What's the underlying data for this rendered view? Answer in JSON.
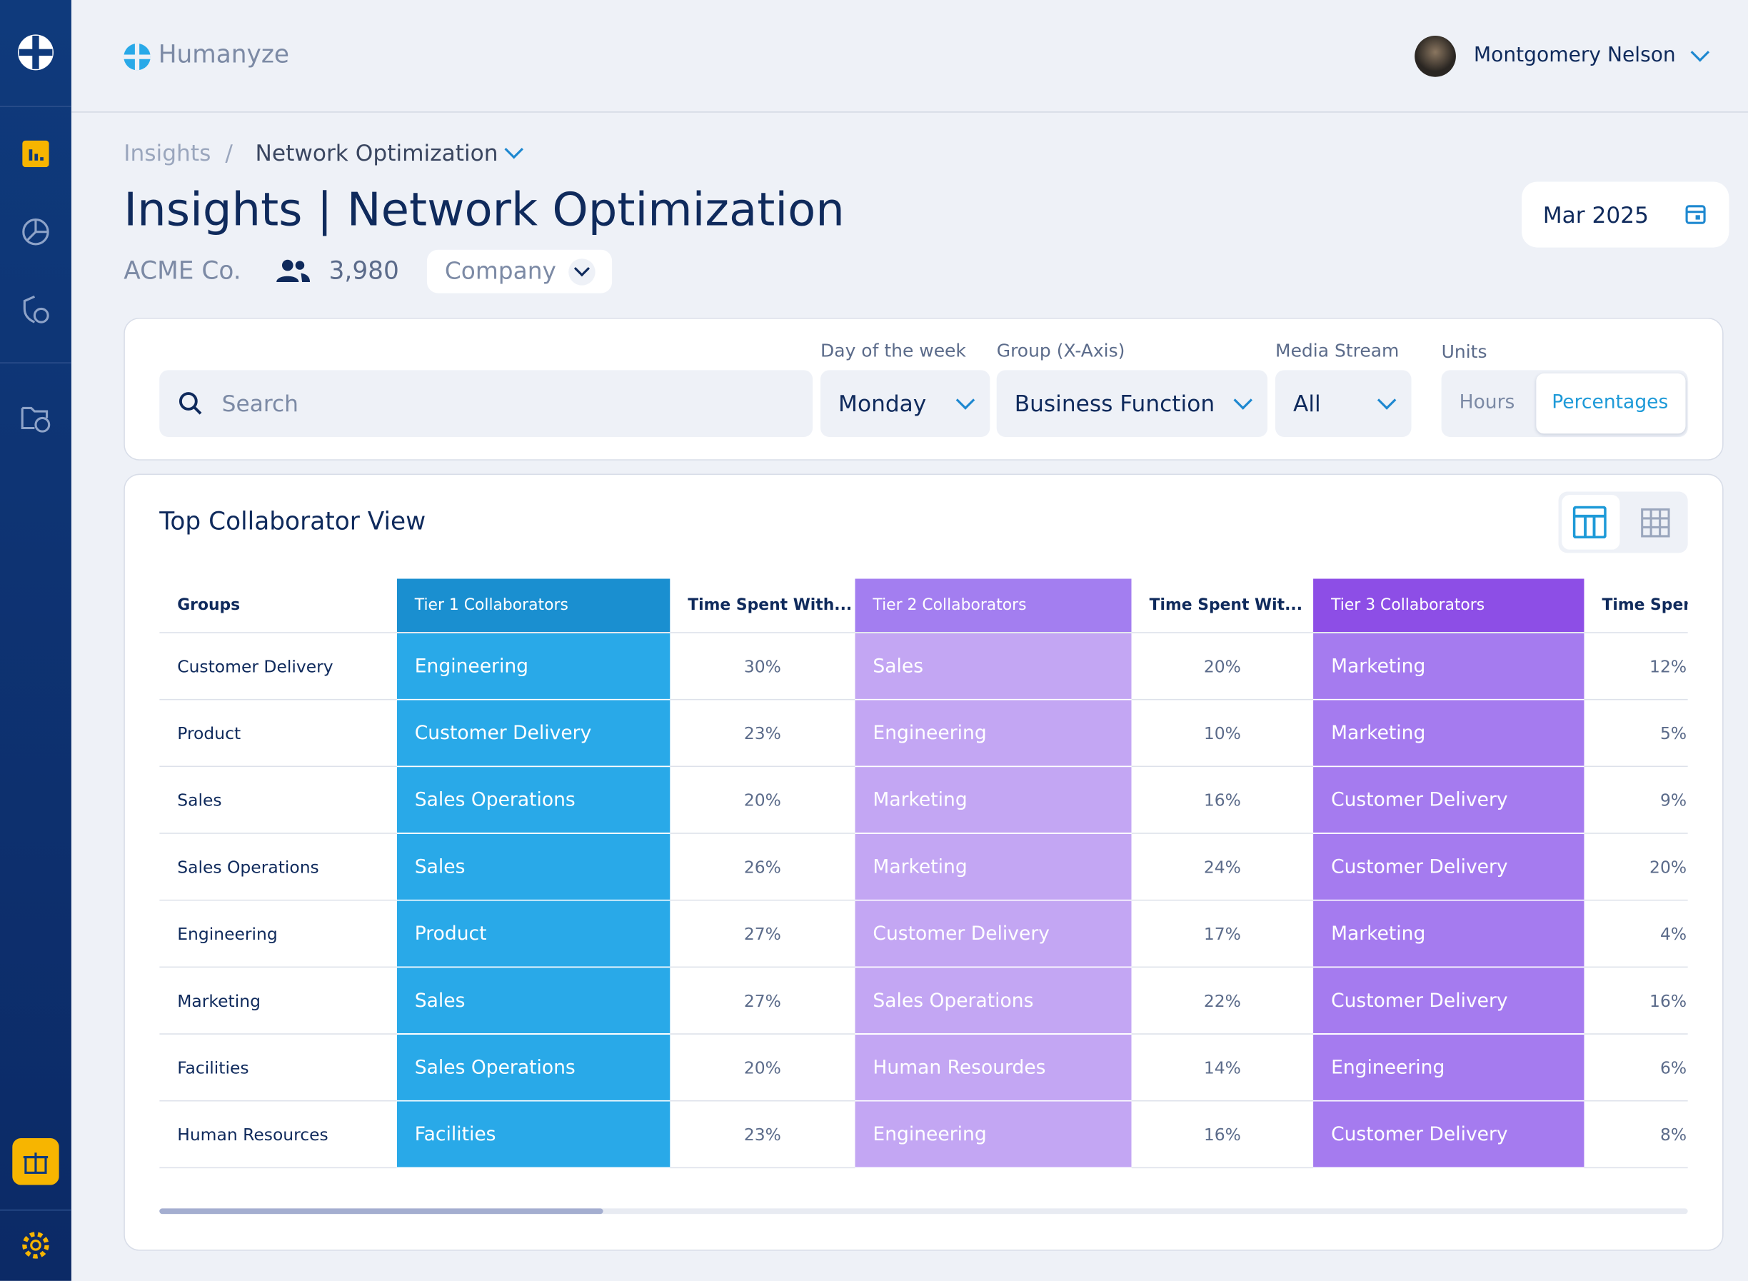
{
  "header": {
    "brand": "Humanyze",
    "user": "Montgomery Nelson"
  },
  "breadcrumb": [
    "Insights",
    "Network Optimization"
  ],
  "title": "Insights | Network Optimization",
  "org": {
    "name": "ACME Co.",
    "count": "3,980",
    "scope": "Company"
  },
  "date": "Mar 2025",
  "filters": {
    "search": "Search",
    "day": {
      "label": "Day of the week",
      "value": "Monday"
    },
    "group": {
      "label": "Group (X-Axis)",
      "value": "Business Function"
    },
    "media": {
      "label": "Media Stream",
      "value": "All"
    },
    "units": {
      "label": "Units",
      "options": [
        "Hours",
        "Percentages"
      ]
    }
  },
  "table": {
    "title": "Top Collaborator View",
    "columns": [
      "Groups",
      "Tier 1 Collaborators",
      "Time Spent With...",
      "Tier 2 Collaborators",
      "Time Spent Wit...",
      "Tier 3 Collaborators",
      "Time Spen"
    ],
    "rows": [
      [
        "Customer Delivery",
        "Engineering",
        "30%",
        "Sales",
        "20%",
        "Marketing",
        "12%"
      ],
      [
        "Product",
        "Customer Delivery",
        "23%",
        "Engineering",
        "10%",
        "Marketing",
        "5%"
      ],
      [
        "Sales",
        "Sales Operations",
        "20%",
        "Marketing",
        "16%",
        "Customer Delivery",
        "9%"
      ],
      [
        "Sales Operations",
        "Sales",
        "26%",
        "Marketing",
        "24%",
        "Customer Delivery",
        "20%"
      ],
      [
        "Engineering",
        "Product",
        "27%",
        "Customer Delivery",
        "17%",
        "Marketing",
        "4%"
      ],
      [
        "Marketing",
        "Sales",
        "27%",
        "Sales Operations",
        "22%",
        "Customer Delivery",
        "16%"
      ],
      [
        "Facilities",
        "Sales Operations",
        "20%",
        "Human Resourdes",
        "14%",
        "Engineering",
        "6%"
      ],
      [
        "Human Resources",
        "Facilities",
        "23%",
        "Engineering",
        "16%",
        "Customer Delivery",
        "8%"
      ]
    ]
  }
}
